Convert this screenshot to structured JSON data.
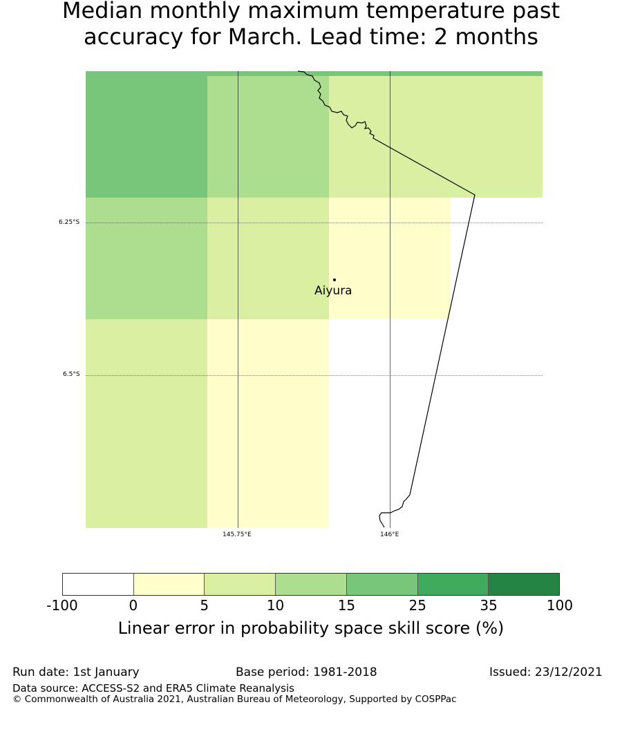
{
  "title": {
    "line1": "Median monthly maximum temperature past",
    "line2": "accuracy for March. Lead time: 2 months"
  },
  "map": {
    "lat_labels": [
      "6.25°S",
      "6.5°S"
    ],
    "lon_labels": [
      "145.75°E",
      "146°E"
    ],
    "place": "Aiyura"
  },
  "colorbar": {
    "label": "Linear error in probability space skill score (%)",
    "ticks": [
      "-100",
      "0",
      "5",
      "10",
      "15",
      "25",
      "35",
      "100"
    ],
    "colors": [
      "#ffffff",
      "#ffffcc",
      "#d9f0a3",
      "#addd8e",
      "#78c679",
      "#41ab5d",
      "#238443"
    ]
  },
  "grid_colors": [
    [
      "#78c679",
      "#addd8e",
      "#d9f0a3",
      "#d9f0a3"
    ],
    [
      "#addd8e",
      "#d9f0a3",
      "#ffffcc",
      "#ffffff"
    ],
    [
      "#d9f0a3",
      "#ffffcc",
      "#ffffff",
      "#ffffff"
    ]
  ],
  "footer": {
    "run_date": "Run date: 1st January",
    "base_period": "Base period: 1981-2018",
    "issued": "Issued: 23/12/2021",
    "data_source": "Data source: ACCESS-S2 and ERA5 Climate Reanalysis",
    "copyright": "© Commonwealth of Australia 2021, Australian Bureau of Meteorology, Supported by COSPPac"
  }
}
